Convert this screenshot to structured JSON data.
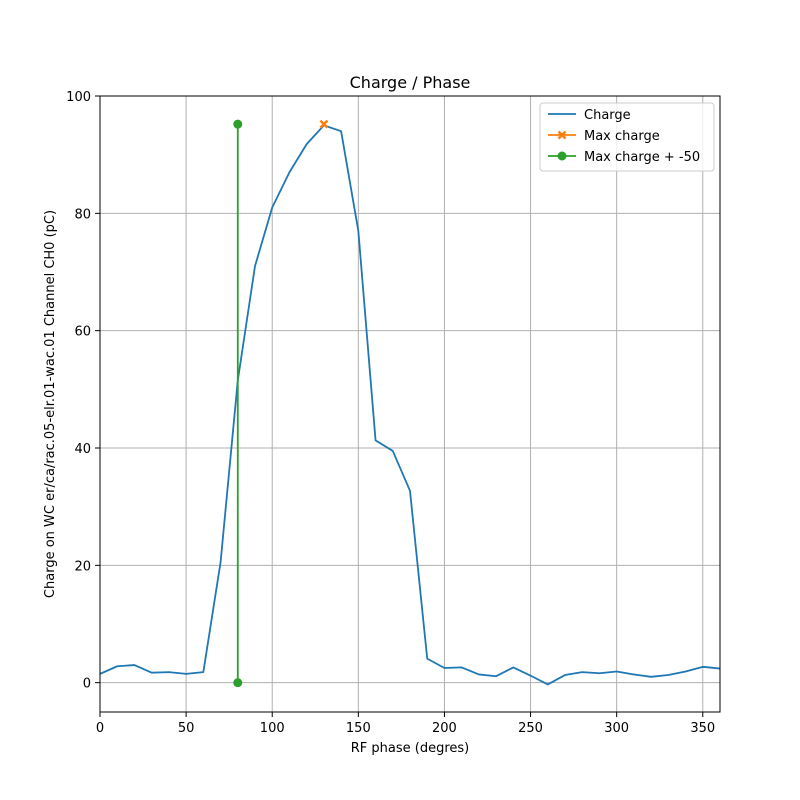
{
  "chart_data": {
    "type": "line",
    "title": "Charge / Phase",
    "xlabel": "RF phase (degres)",
    "ylabel": "Charge on WC er/ca/rac.05-elr.01-wac.01 Channel CH0 (pC)",
    "xlim": [
      0,
      360
    ],
    "ylim": [
      -5,
      100
    ],
    "xticks": [
      0,
      50,
      100,
      150,
      200,
      250,
      300,
      350
    ],
    "yticks": [
      0,
      20,
      40,
      60,
      80,
      100
    ],
    "grid": true,
    "legend_position": "top-right",
    "series": [
      {
        "name": "Charge",
        "color": "#1f77b4",
        "marker": "none",
        "x": [
          0,
          10,
          20,
          30,
          40,
          50,
          60,
          70,
          80,
          90,
          100,
          110,
          120,
          130,
          140,
          150,
          160,
          170,
          180,
          190,
          200,
          210,
          220,
          230,
          240,
          250,
          260,
          270,
          280,
          290,
          300,
          310,
          320,
          330,
          340,
          350,
          360
        ],
        "y": [
          1.5,
          2.8,
          3.0,
          1.7,
          1.8,
          1.5,
          1.8,
          20.5,
          51.5,
          71.0,
          81.0,
          87.0,
          91.8,
          95.0,
          94.0,
          77.0,
          41.3,
          39.5,
          32.7,
          4.1,
          2.5,
          2.6,
          1.4,
          1.1,
          2.6,
          1.2,
          -0.3,
          1.3,
          1.8,
          1.6,
          1.9,
          1.4,
          1.0,
          1.3,
          1.9,
          2.7,
          2.4
        ]
      },
      {
        "name": "Max charge",
        "color": "#ff7f0e",
        "marker": "x",
        "x": [
          130
        ],
        "y": [
          95.2
        ]
      },
      {
        "name": "Max charge + -50",
        "color": "#2ca02c",
        "marker": "circle",
        "x": [
          80,
          80
        ],
        "y": [
          0,
          95.2
        ]
      }
    ]
  }
}
